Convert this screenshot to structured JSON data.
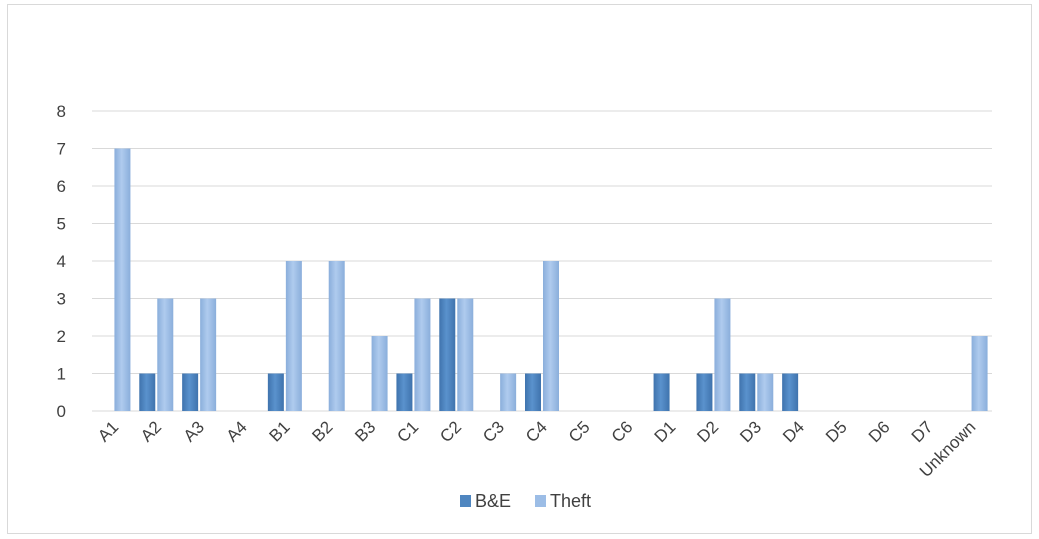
{
  "chart_data": {
    "type": "bar",
    "categories": [
      "A1",
      "A2",
      "A3",
      "A4",
      "B1",
      "B2",
      "B3",
      "C1",
      "C2",
      "C3",
      "C4",
      "C5",
      "C6",
      "D1",
      "D2",
      "D3",
      "D4",
      "D5",
      "D6",
      "D7",
      "Unknown"
    ],
    "series": [
      {
        "name": "B&E",
        "values": [
          0,
          1,
          1,
          0,
          1,
          0,
          0,
          1,
          3,
          0,
          1,
          0,
          0,
          1,
          1,
          1,
          1,
          0,
          0,
          0,
          0
        ],
        "color": "#4f86c0"
      },
      {
        "name": "Theft",
        "values": [
          7,
          3,
          3,
          0,
          4,
          4,
          2,
          3,
          3,
          1,
          4,
          0,
          0,
          0,
          3,
          1,
          0,
          0,
          0,
          0,
          2
        ],
        "color": "#9cbde6"
      }
    ],
    "title": "",
    "xlabel": "",
    "ylabel": "",
    "ylim": [
      0,
      8
    ],
    "yticks": [
      0,
      1,
      2,
      3,
      4,
      5,
      6,
      7,
      8
    ],
    "grid": true,
    "legend": "bottom-center"
  }
}
